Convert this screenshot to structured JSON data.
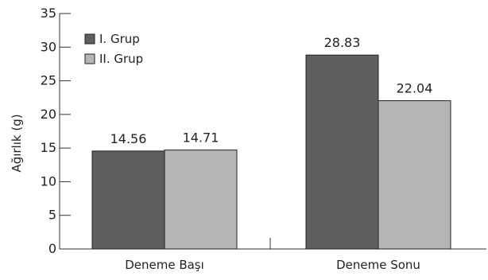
{
  "chart_data": {
    "type": "bar",
    "categories": [
      "Deneme Başı",
      "Deneme Sonu"
    ],
    "series": [
      {
        "name": "I. Grup",
        "values": [
          14.56,
          28.83
        ],
        "color": "#5f5f5f"
      },
      {
        "name": "II. Grup",
        "values": [
          14.71,
          22.04
        ],
        "color": "#b5b5b5"
      }
    ],
    "value_labels": [
      [
        "14.56",
        "28.83"
      ],
      [
        "14.71",
        "22.04"
      ]
    ],
    "ylabel": "Ağırlık (g)",
    "xlabel": "",
    "ylim": [
      0,
      35
    ],
    "yticks": [
      0,
      5,
      10,
      15,
      20,
      25,
      30,
      35
    ],
    "grid": false,
    "legend_position": "top-left"
  }
}
